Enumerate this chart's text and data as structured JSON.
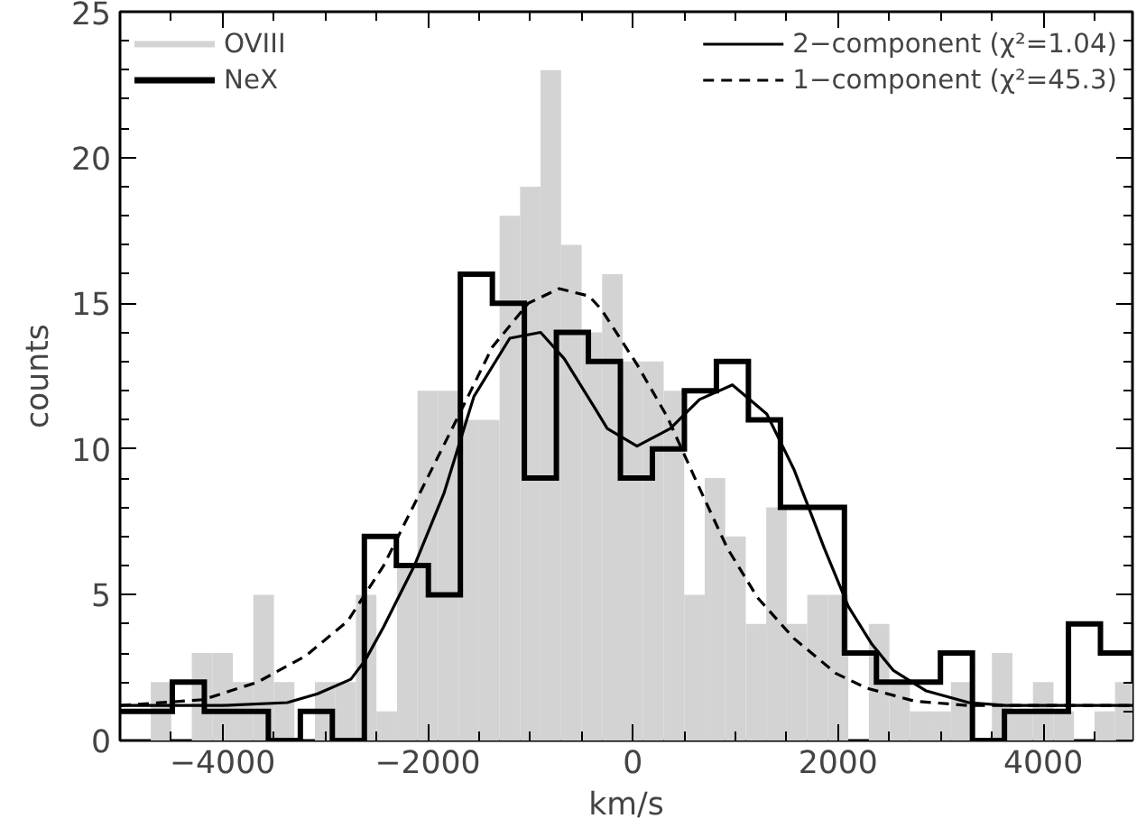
{
  "chart_data": {
    "type": "histogram",
    "xlabel": "km/s",
    "ylabel": "counts",
    "xlim": [
      -5000,
      4870
    ],
    "ylim": [
      0,
      25
    ],
    "xticks": [
      -4000,
      -2000,
      0,
      2000,
      4000
    ],
    "yticks": [
      0,
      5,
      10,
      15,
      20,
      25
    ],
    "grid": false,
    "legend": "top left",
    "series": [
      {
        "name": "OVIII",
        "color": "#d3d3d3",
        "bins": [
          -4700,
          -4500,
          -4300,
          -4100,
          -3900,
          -3700,
          -3500,
          -3300,
          -3100,
          -2900,
          -2700,
          -2500,
          -2300,
          -2100,
          -1900,
          -1700,
          -1500,
          -1300,
          -1100,
          -900,
          -700,
          -500,
          -300,
          -100,
          100,
          300,
          500,
          700,
          900,
          1100,
          1300,
          1500,
          1700,
          1900,
          2100,
          2300,
          2500,
          2700,
          2900,
          3100,
          3300,
          3500,
          3700,
          3900,
          4100,
          4300,
          4500,
          4700,
          4870
        ],
        "values": [
          2,
          0,
          3,
          3,
          2,
          5,
          2,
          0,
          2,
          2,
          5,
          1,
          6,
          12,
          12,
          11,
          11,
          18,
          19,
          23,
          17,
          14,
          16,
          13,
          13,
          12,
          5,
          9,
          7,
          4,
          8,
          4,
          5,
          5,
          0,
          4,
          2,
          1,
          1,
          2,
          0,
          3,
          1,
          2,
          1,
          0,
          1,
          2
        ]
      },
      {
        "name": "NeX",
        "type": "step",
        "color": "#000000",
        "x": [
          -5000,
          -4802,
          -4490,
          -4178,
          -3866,
          -3554,
          -3242,
          -2930,
          -2618,
          -2306,
          -1994,
          -1682,
          -1370,
          -1058,
          -746,
          -434,
          -122,
          190,
          502,
          814,
          1126,
          1438,
          1750,
          2062,
          2374,
          2686,
          2998,
          3310,
          3622,
          3934,
          4246,
          4558,
          4870
        ],
        "values": [
          1,
          1,
          2,
          1,
          1,
          0,
          1,
          0,
          7,
          6,
          5,
          16,
          15,
          9,
          14,
          13,
          9,
          10,
          12,
          13,
          11,
          8,
          8,
          3,
          2,
          2,
          3,
          0,
          1,
          1,
          4,
          3,
          3
        ]
      },
      {
        "name": "2−component (χ²=1.04)",
        "type": "line",
        "line_style": "solid",
        "color": "#000000",
        "x": [
          -5000,
          -4000,
          -3370,
          -3075,
          -2750,
          -2610,
          -2430,
          -2130,
          -1840,
          -1550,
          -1200,
          -900,
          -670,
          -370,
          -250,
          40,
          365,
          650,
          970,
          1305,
          1570,
          1865,
          2100,
          2330,
          2540,
          2860,
          3275,
          3630,
          4870
        ],
        "values": [
          1.2,
          1.2,
          1.3,
          1.6,
          2.1,
          2.75,
          3.9,
          6.0,
          8.5,
          11.8,
          13.8,
          14.0,
          13.1,
          11.4,
          10.7,
          10.1,
          10.7,
          11.7,
          12.2,
          11.2,
          9.3,
          6.6,
          4.6,
          3.3,
          2.4,
          1.7,
          1.3,
          1.2,
          1.2
        ]
      },
      {
        "name": "1−component (χ²=45.3)",
        "type": "line",
        "line_style": "dashed",
        "color": "#000000",
        "x": [
          -5000,
          -4190,
          -3660,
          -3190,
          -2780,
          -2430,
          -2075,
          -1720,
          -1370,
          -1020,
          -720,
          -430,
          -310,
          40,
          335,
          630,
          920,
          1215,
          1570,
          1980,
          2275,
          2745,
          3275,
          4870
        ],
        "values": [
          1.2,
          1.4,
          2.0,
          2.9,
          4.1,
          6.0,
          8.5,
          11.0,
          13.5,
          15.0,
          15.5,
          15.25,
          14.8,
          12.9,
          11.1,
          8.8,
          6.6,
          4.9,
          3.5,
          2.3,
          1.8,
          1.35,
          1.2,
          1.2
        ]
      }
    ]
  }
}
